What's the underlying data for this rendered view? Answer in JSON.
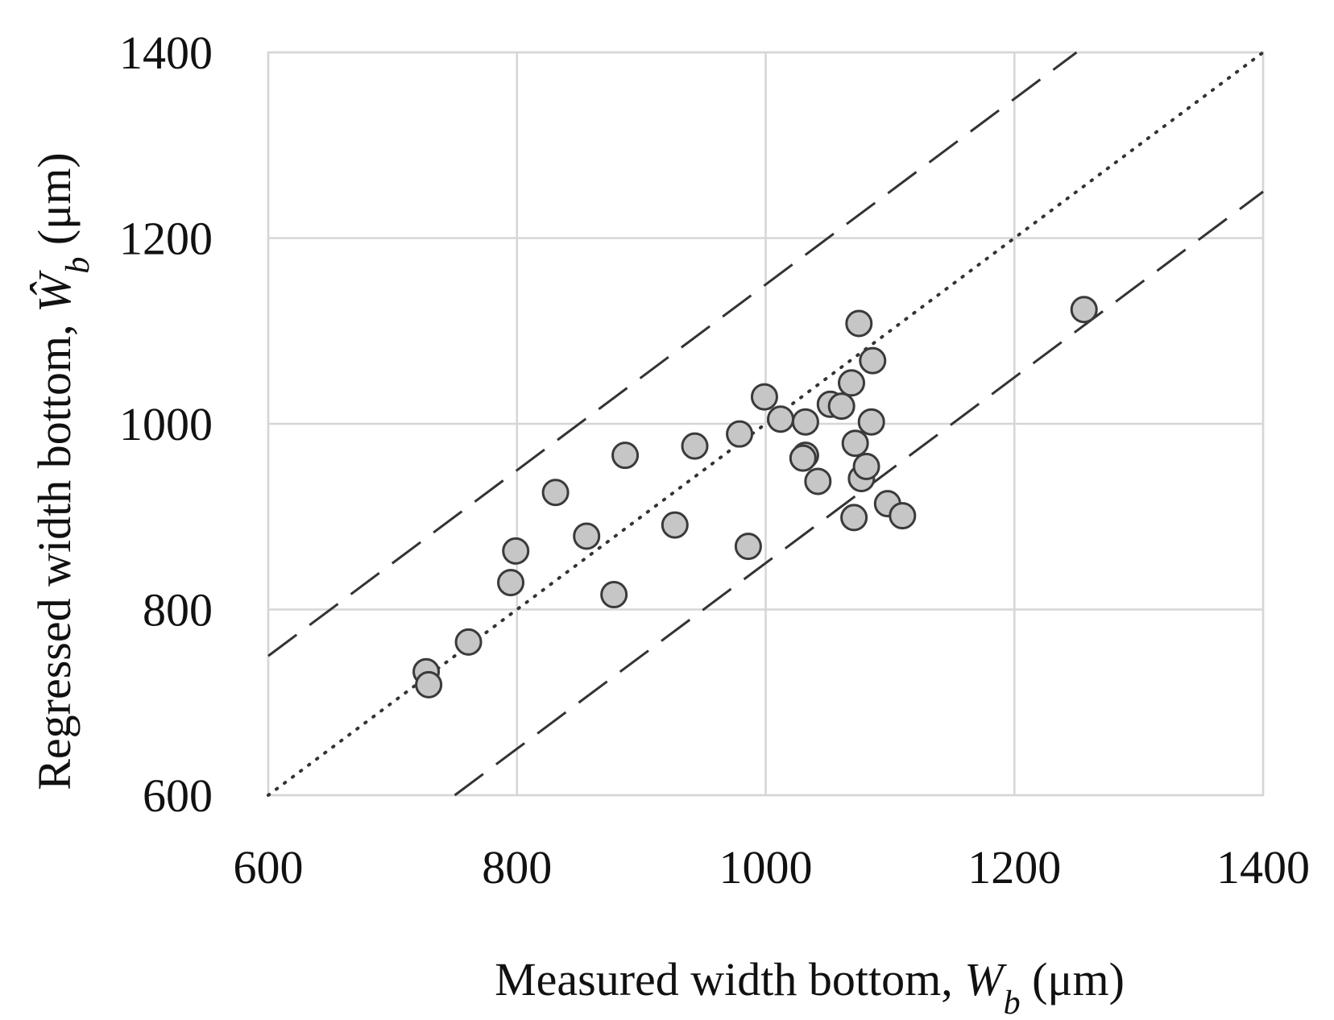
{
  "chart_data": {
    "type": "scatter",
    "xlabel": {
      "main": "Measured width bottom, ",
      "var": "W",
      "sub": "b",
      "unit": " (μm)"
    },
    "ylabel": {
      "main": "Regressed width bottom, ",
      "var": "Ŵ",
      "sub": "b",
      "unit": " (μm)"
    },
    "xlim": [
      600,
      1400
    ],
    "ylim": [
      600,
      1400
    ],
    "xticks": [
      "600",
      "800",
      "1000",
      "1200",
      "1400"
    ],
    "yticks": [
      "600",
      "800",
      "1000",
      "1200",
      "1400"
    ],
    "grid": true,
    "series": [
      {
        "points": [
          {
            "x": 727,
            "y": 733
          },
          {
            "x": 729,
            "y": 719
          },
          {
            "x": 761,
            "y": 765
          },
          {
            "x": 795,
            "y": 829
          },
          {
            "x": 799,
            "y": 863
          },
          {
            "x": 831,
            "y": 926
          },
          {
            "x": 856,
            "y": 879
          },
          {
            "x": 878,
            "y": 816
          },
          {
            "x": 887,
            "y": 966
          },
          {
            "x": 927,
            "y": 891
          },
          {
            "x": 943,
            "y": 976
          },
          {
            "x": 979,
            "y": 989
          },
          {
            "x": 986,
            "y": 868
          },
          {
            "x": 999,
            "y": 1029
          },
          {
            "x": 1012,
            "y": 1005
          },
          {
            "x": 1032,
            "y": 1002
          },
          {
            "x": 1032,
            "y": 966
          },
          {
            "x": 1030,
            "y": 963
          },
          {
            "x": 1042,
            "y": 938
          },
          {
            "x": 1052,
            "y": 1021
          },
          {
            "x": 1061,
            "y": 1019
          },
          {
            "x": 1069,
            "y": 1044
          },
          {
            "x": 1075,
            "y": 1108
          },
          {
            "x": 1086,
            "y": 1068
          },
          {
            "x": 1085,
            "y": 1002
          },
          {
            "x": 1072,
            "y": 979
          },
          {
            "x": 1077,
            "y": 941
          },
          {
            "x": 1081,
            "y": 954
          },
          {
            "x": 1071,
            "y": 899
          },
          {
            "x": 1098,
            "y": 914
          },
          {
            "x": 1110,
            "y": 901
          },
          {
            "x": 1256,
            "y": 1123
          }
        ]
      }
    ],
    "reference_lines": [
      {
        "style": "dotted",
        "from": [
          600,
          600
        ],
        "to": [
          1400,
          1400
        ]
      },
      {
        "style": "dashed",
        "from": [
          600,
          750
        ],
        "to": [
          1250,
          1400
        ]
      },
      {
        "style": "dashed",
        "from": [
          750,
          600
        ],
        "to": [
          1400,
          1250
        ]
      }
    ]
  }
}
